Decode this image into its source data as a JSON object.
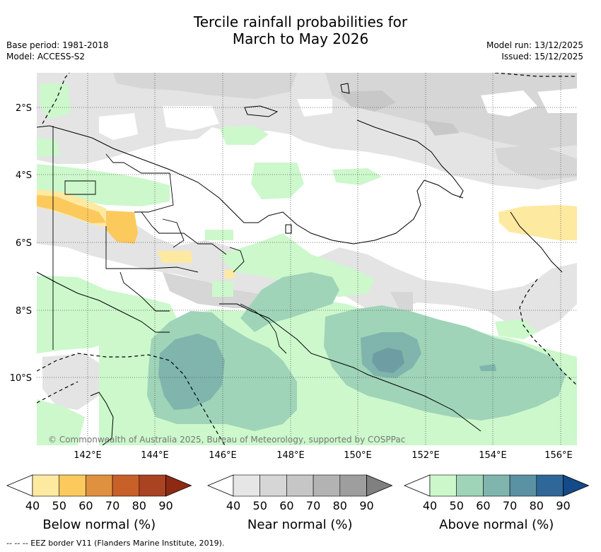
{
  "title_line1": "Tercile rainfall probabilities for",
  "title_line2": "March to May 2026",
  "base_period": "Base period: 1981-2018",
  "model": "Model: ACCESS-S2",
  "model_run": "Model run: 13/12/2025",
  "issued": "Issued: 15/12/2025",
  "copyright": "© Commonwealth of Australia 2025, Bureau of Meteorology, supported by COSPPac",
  "footnote": "--  --  -- EEZ border V11 (Flanders Marine Institute, 2019).",
  "lat_labels": [
    "2°S",
    "4°S",
    "6°S",
    "8°S",
    "10°S"
  ],
  "lon_labels": [
    "142°E",
    "144°E",
    "146°E",
    "148°E",
    "150°E",
    "152°E",
    "154°E",
    "156°E"
  ],
  "colorbars": [
    {
      "title": "Below normal (%)",
      "ticks": [
        "40",
        "50",
        "60",
        "70",
        "80",
        "90"
      ],
      "colors": [
        "#ffffff",
        "#fee9a0",
        "#fcc95d",
        "#e0913f",
        "#c8602a",
        "#a94322",
        "#8e2a14"
      ]
    },
    {
      "title": "Near normal (%)",
      "ticks": [
        "40",
        "50",
        "60",
        "70",
        "80",
        "90"
      ],
      "colors": [
        "#ffffff",
        "#e6e6e6",
        "#d6d6d6",
        "#c6c6c6",
        "#b3b3b3",
        "#9e9e9e",
        "#808080"
      ]
    },
    {
      "title": "Above normal (%)",
      "ticks": [
        "40",
        "50",
        "60",
        "70",
        "80",
        "90"
      ],
      "colors": [
        "#ffffff",
        "#cbf7cb",
        "#9fd4b8",
        "#7fb5ac",
        "#5a92a3",
        "#2f6798",
        "#134a87"
      ]
    }
  ]
}
